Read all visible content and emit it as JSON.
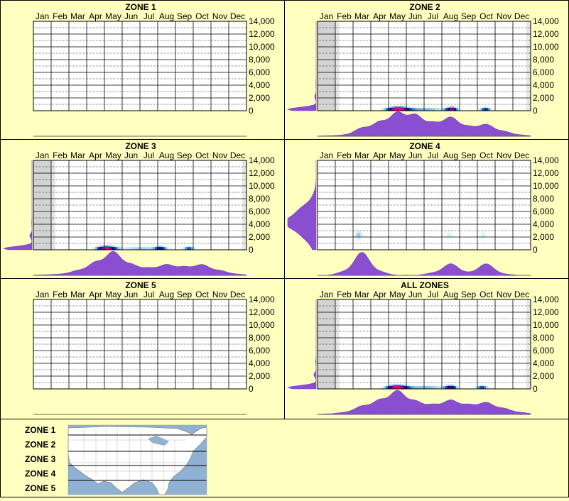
{
  "colors": {
    "page_background": "#ffffc0",
    "border": "#000000",
    "grid_line": "#000000",
    "density_fill": "#8a4fd0",
    "density_stroke": "#7a3cc8",
    "heat_low": "#bff4fa",
    "heat_mid": "#1e73c8",
    "heat_core": "#000b8a",
    "heat_peak": "#d9007a",
    "shade_outside": "#d3d3d3",
    "map_water": "#8fb1d3",
    "map_land": "#ffffff"
  },
  "months": [
    "Jan",
    "Feb",
    "Mar",
    "Apr",
    "May",
    "Jun",
    "Jul",
    "Aug",
    "Sep",
    "Oct",
    "Nov",
    "Dec"
  ],
  "y_ticks": [
    "14,000",
    "12,000",
    "10,000",
    "8,000",
    "6,000",
    "4,000",
    "2,000",
    "0"
  ],
  "chart_data": [
    {
      "type": "heatmap",
      "title": "ZONE 1",
      "categories": [
        "Jan",
        "Feb",
        "Mar",
        "Apr",
        "May",
        "Jun",
        "Jul",
        "Aug",
        "Sep",
        "Oct",
        "Nov",
        "Dec"
      ],
      "ylim": [
        0,
        14000
      ],
      "y_ticks": [
        0,
        2000,
        4000,
        6000,
        8000,
        10000,
        12000,
        14000
      ],
      "empty": true,
      "season_months": [],
      "hotspots": [],
      "month_density": [
        0,
        0,
        0,
        0,
        0,
        0,
        0,
        0,
        0,
        0,
        0,
        0
      ],
      "elev_density": [
        0,
        0,
        0,
        0,
        0,
        0,
        0,
        0
      ]
    },
    {
      "type": "heatmap",
      "title": "ZONE 2",
      "categories": [
        "Jan",
        "Feb",
        "Mar",
        "Apr",
        "May",
        "Jun",
        "Jul",
        "Aug",
        "Sep",
        "Oct",
        "Nov",
        "Dec"
      ],
      "ylim": [
        0,
        14000
      ],
      "y_ticks": [
        0,
        2000,
        4000,
        6000,
        8000,
        10000,
        12000,
        14000
      ],
      "empty": false,
      "season_months": [
        2,
        12
      ],
      "hotspots": [
        {
          "month": 4.95,
          "elev": 300,
          "intensity": 1.0,
          "spread": 1.2
        },
        {
          "month": 8.0,
          "elev": 300,
          "intensity": 0.8,
          "spread": 0.6
        },
        {
          "month": 9.9,
          "elev": 300,
          "intensity": 0.6,
          "spread": 0.6
        },
        {
          "month": 6.5,
          "elev": 300,
          "intensity": 0.35,
          "spread": 2.5
        }
      ],
      "month_density": [
        0.02,
        0.05,
        0.35,
        0.6,
        1.0,
        0.9,
        0.55,
        0.8,
        0.4,
        0.5,
        0.2,
        0.05
      ],
      "elev_density": [
        1.0,
        0.05,
        0.01,
        0,
        0,
        0,
        0,
        0
      ]
    },
    {
      "type": "heatmap",
      "title": "ZONE 3",
      "categories": [
        "Jan",
        "Feb",
        "Mar",
        "Apr",
        "May",
        "Jun",
        "Jul",
        "Aug",
        "Sep",
        "Oct",
        "Nov",
        "Dec"
      ],
      "ylim": [
        0,
        14000
      ],
      "y_ticks": [
        0,
        2000,
        4000,
        6000,
        8000,
        10000,
        12000,
        14000
      ],
      "empty": false,
      "season_months": [
        2,
        12
      ],
      "hotspots": [
        {
          "month": 4.55,
          "elev": 300,
          "intensity": 1.0,
          "spread": 1.0
        },
        {
          "month": 7.6,
          "elev": 300,
          "intensity": 0.55,
          "spread": 0.6
        },
        {
          "month": 9.2,
          "elev": 300,
          "intensity": 0.5,
          "spread": 0.6
        },
        {
          "month": 6.5,
          "elev": 300,
          "intensity": 0.3,
          "spread": 2.5
        }
      ],
      "month_density": [
        0.02,
        0.05,
        0.2,
        0.55,
        1.0,
        0.45,
        0.3,
        0.45,
        0.35,
        0.45,
        0.2,
        0.05
      ],
      "elev_density": [
        1.0,
        0.08,
        0.01,
        0,
        0,
        0,
        0,
        0
      ]
    },
    {
      "type": "heatmap",
      "title": "ZONE 4",
      "categories": [
        "Jan",
        "Feb",
        "Mar",
        "Apr",
        "May",
        "Jun",
        "Jul",
        "Aug",
        "Sep",
        "Oct",
        "Nov",
        "Dec"
      ],
      "ylim": [
        0,
        14000
      ],
      "y_ticks": [
        0,
        2000,
        4000,
        6000,
        8000,
        10000,
        12000,
        14000
      ],
      "empty": false,
      "season_months": [],
      "hotspots": [
        {
          "month": 2.75,
          "elev": 2400,
          "intensity": 0.3,
          "spread": 0.5
        },
        {
          "month": 7.85,
          "elev": 2400,
          "intensity": 0.2,
          "spread": 0.5
        },
        {
          "month": 9.75,
          "elev": 2400,
          "intensity": 0.2,
          "spread": 0.5
        }
      ],
      "month_density": [
        0,
        0.15,
        1.0,
        0.15,
        0,
        0,
        0.1,
        0.5,
        0.1,
        0.5,
        0.05,
        0
      ],
      "elev_density": [
        0.1,
        0.4,
        1.0,
        0.5,
        0.1,
        0,
        0,
        0
      ]
    },
    {
      "type": "heatmap",
      "title": "ZONE 5",
      "categories": [
        "Jan",
        "Feb",
        "Mar",
        "Apr",
        "May",
        "Jun",
        "Jul",
        "Aug",
        "Sep",
        "Oct",
        "Nov",
        "Dec"
      ],
      "ylim": [
        0,
        14000
      ],
      "y_ticks": [
        0,
        2000,
        4000,
        6000,
        8000,
        10000,
        12000,
        14000
      ],
      "empty": true,
      "season_months": [],
      "hotspots": [],
      "month_density": [
        0,
        0,
        0,
        0,
        0,
        0,
        0,
        0,
        0,
        0,
        0,
        0
      ],
      "elev_density": [
        0,
        0,
        0,
        0,
        0,
        0,
        0,
        0
      ]
    },
    {
      "type": "heatmap",
      "title": "ALL ZONES",
      "categories": [
        "Jan",
        "Feb",
        "Mar",
        "Apr",
        "May",
        "Jun",
        "Jul",
        "Aug",
        "Sep",
        "Oct",
        "Nov",
        "Dec"
      ],
      "ylim": [
        0,
        14000
      ],
      "y_ticks": [
        0,
        2000,
        4000,
        6000,
        8000,
        10000,
        12000,
        14000
      ],
      "empty": false,
      "season_months": [
        2,
        12
      ],
      "hotspots": [
        {
          "month": 4.9,
          "elev": 300,
          "intensity": 1.0,
          "spread": 1.1
        },
        {
          "month": 7.95,
          "elev": 300,
          "intensity": 0.7,
          "spread": 0.6
        },
        {
          "month": 9.7,
          "elev": 300,
          "intensity": 0.55,
          "spread": 0.6
        },
        {
          "month": 6.5,
          "elev": 300,
          "intensity": 0.35,
          "spread": 2.5
        }
      ],
      "month_density": [
        0.02,
        0.08,
        0.35,
        0.6,
        1.0,
        0.55,
        0.4,
        0.6,
        0.4,
        0.5,
        0.25,
        0.08
      ],
      "elev_density": [
        1.0,
        0.08,
        0.02,
        0,
        0,
        0,
        0,
        0
      ]
    }
  ],
  "legend": {
    "zones": [
      "ZONE 1",
      "ZONE 2",
      "ZONE 3",
      "ZONE 4",
      "ZONE 5"
    ]
  }
}
